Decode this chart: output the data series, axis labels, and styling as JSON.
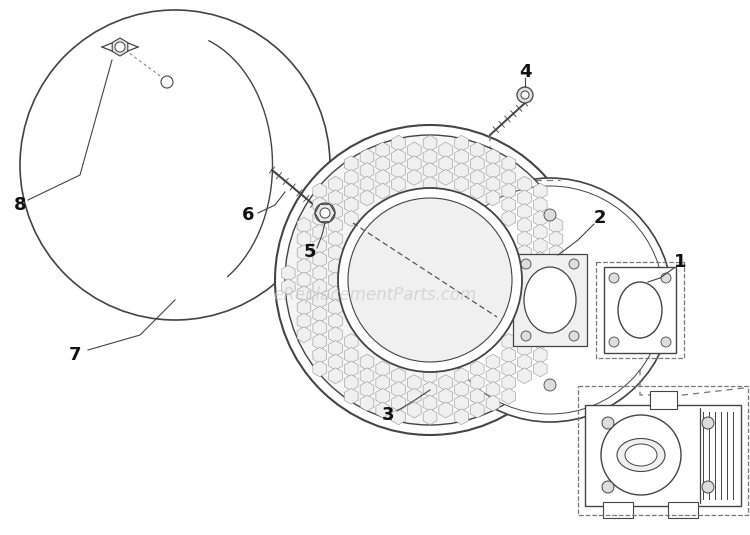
{
  "bg_color": "#ffffff",
  "watermark": "eReplacementParts.com",
  "watermark_color": "#c8c8c8",
  "watermark_fontsize": 12,
  "label_fontsize": 13,
  "label_color": "#111111",
  "line_color": "#444444",
  "dashed_color": "#777777",
  "fig_w": 7.5,
  "fig_h": 5.35,
  "dpi": 100
}
